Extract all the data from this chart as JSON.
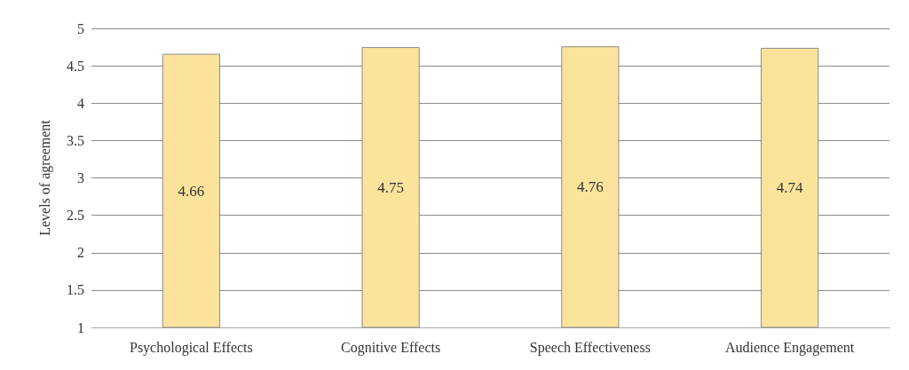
{
  "chart_data": {
    "type": "bar",
    "ylabel": "Levels of agreement",
    "categories": [
      "Psychological Effects",
      "Cognitive Effects",
      "Speech Effectiveness",
      "Audience Engagement"
    ],
    "values": [
      4.66,
      4.75,
      4.76,
      4.74
    ],
    "color": "#fce39c",
    "ylim": [
      1,
      5
    ],
    "yticks": [
      1,
      1.5,
      2,
      2.5,
      3,
      3.5,
      4,
      4.5,
      5
    ],
    "grid": "y",
    "data_labels": true
  }
}
